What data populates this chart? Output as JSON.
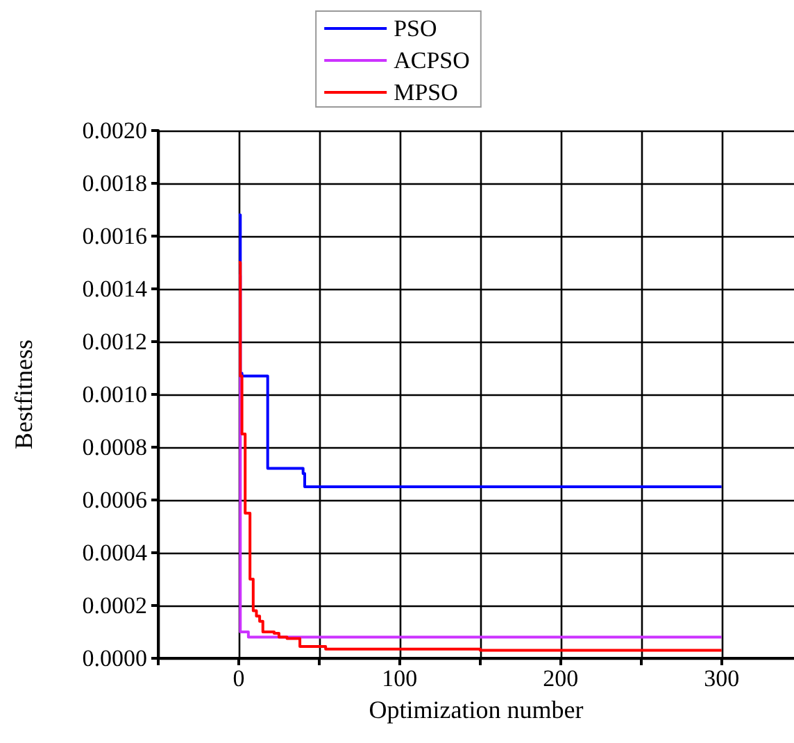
{
  "chart_data": {
    "type": "step",
    "xlabel": "Optimization number",
    "ylabel": "Bestfitness",
    "xlim": [
      -50,
      345
    ],
    "ylim": [
      0,
      0.002
    ],
    "xticks": [
      {
        "value": -50,
        "label": null
      },
      0,
      {
        "value": 50,
        "label": null
      },
      100,
      {
        "value": 150,
        "label": null
      },
      200,
      {
        "value": 250,
        "label": null
      },
      300
    ],
    "yticks": [
      {
        "value": 0,
        "label": "0.0000"
      },
      {
        "value": 0.0002,
        "label": "0.0002"
      },
      {
        "value": 0.0004,
        "label": "0.0004"
      },
      {
        "value": 0.0006,
        "label": "0.0006"
      },
      {
        "value": 0.0008,
        "label": "0.0008"
      },
      {
        "value": 0.001,
        "label": "0.0010"
      },
      {
        "value": 0.0012,
        "label": "0.0012"
      },
      {
        "value": 0.0014,
        "label": "0.0014"
      },
      {
        "value": 0.0016,
        "label": "0.0016"
      },
      {
        "value": 0.0018,
        "label": "0.0018"
      },
      {
        "value": 0.002,
        "label": "0.0020"
      }
    ],
    "grid": true,
    "legend": "top",
    "marker": "none",
    "line_style": "solid",
    "series": [
      {
        "name": "PSO",
        "color": "#0000ff",
        "x": [
          0,
          1,
          2,
          17,
          18,
          40,
          41,
          300
        ],
        "values": [
          0.00168,
          0.00108,
          0.00107,
          0.00107,
          0.00072,
          0.0007,
          0.00065,
          0.00065
        ]
      },
      {
        "name": "ACPSO",
        "color": "#cc33ff",
        "x": [
          0,
          1,
          4,
          6,
          300
        ],
        "values": [
          0.00145,
          0.0001,
          0.0001,
          8e-05,
          8e-05
        ]
      },
      {
        "name": "MPSO",
        "color": "#ff0000",
        "x": [
          0,
          1,
          2,
          4,
          7,
          9,
          11,
          13,
          15,
          17,
          22,
          25,
          30,
          38,
          54,
          100,
          150,
          300
        ],
        "values": [
          0.0015,
          0.00107,
          0.00085,
          0.00055,
          0.0003,
          0.00018,
          0.00016,
          0.00014,
          0.0001,
          0.0001,
          9.5e-05,
          8e-05,
          7.5e-05,
          4.5e-05,
          3.5e-05,
          3.5e-05,
          3e-05,
          3e-05
        ]
      }
    ]
  }
}
